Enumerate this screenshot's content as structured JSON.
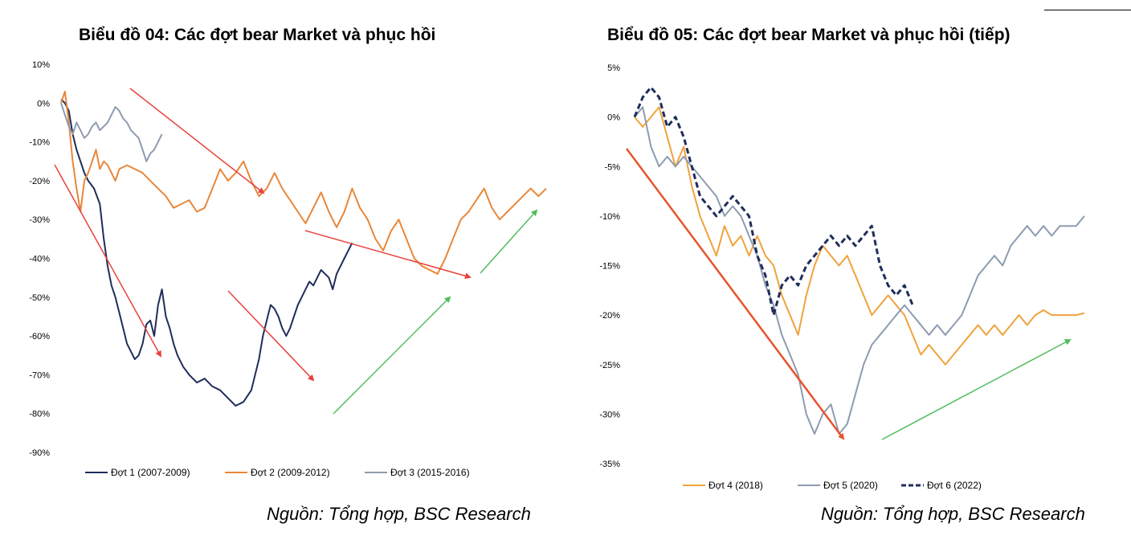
{
  "charts": {
    "left": {
      "title": "Biểu đồ 04: Các đợt bear Market và phục hồi",
      "source": "Nguồn: Tổng hợp, BSC Research"
    },
    "right": {
      "title": "Biểu đồ 05: Các đợt bear Market và phục hồi (tiếp)",
      "source": "Nguồn: Tổng hợp, BSC Research"
    }
  },
  "chart_data": [
    {
      "type": "line",
      "title": "Biểu đồ 04: Các đợt bear Market và phục hồi",
      "xlabel": "",
      "ylabel": "",
      "ylim": [
        -90,
        10
      ],
      "yticks": [
        "10%",
        "0%",
        "-10%",
        "-20%",
        "-30%",
        "-40%",
        "-50%",
        "-60%",
        "-70%",
        "-80%",
        "-90%"
      ],
      "legend_position": "bottom",
      "series": [
        {
          "name": "Đợt 1 (2007-2009)",
          "color": "#1f2d5a",
          "dash": false,
          "x": [
            0,
            2,
            4,
            6,
            8,
            10,
            12,
            14,
            17,
            20,
            22,
            24,
            26,
            28,
            30,
            32,
            34,
            36,
            38,
            40,
            42,
            44,
            46,
            48,
            50,
            52,
            54,
            56,
            58,
            60,
            63,
            66,
            70,
            74,
            78,
            82,
            86,
            90,
            94,
            98,
            100,
            102,
            104,
            106,
            108,
            110,
            112,
            114,
            116,
            118,
            120,
            122,
            124,
            126,
            128,
            130,
            132,
            134,
            136,
            138,
            140,
            142,
            144,
            146,
            148,
            150
          ],
          "values": [
            1,
            0,
            -2,
            -8,
            -12,
            -15,
            -18,
            -20,
            -22,
            -26,
            -35,
            -42,
            -47,
            -50,
            -54,
            -58,
            -62,
            -64,
            -66,
            -65,
            -62,
            -57,
            -56,
            -60,
            -52,
            -48,
            -55,
            -58,
            -62,
            -65,
            -68,
            -70,
            -72,
            -71,
            -73,
            -74,
            -76,
            -78,
            -77,
            -74,
            -70,
            -66,
            -60,
            -56,
            -52,
            -53,
            -55,
            -58,
            -60,
            -58,
            -55,
            -52,
            -50,
            -48,
            -46,
            -47,
            -45,
            -43,
            -44,
            -45,
            -48,
            -44,
            -42,
            -40,
            -38,
            -36
          ]
        },
        {
          "name": "Đợt 2 (2009-2012)",
          "color": "#e8873a",
          "dash": false,
          "x": [
            0,
            2,
            4,
            6,
            8,
            10,
            12,
            14,
            16,
            18,
            20,
            22,
            24,
            26,
            28,
            30,
            34,
            38,
            42,
            46,
            50,
            54,
            58,
            62,
            66,
            70,
            74,
            78,
            82,
            86,
            90,
            94,
            98,
            102,
            106,
            110,
            114,
            118,
            122,
            126,
            130,
            134,
            138,
            142,
            146,
            150,
            154,
            158,
            162,
            166,
            170,
            174,
            178,
            182,
            186,
            190,
            194,
            198,
            202,
            206,
            210,
            214,
            218,
            222,
            226,
            230,
            234,
            238,
            242,
            246,
            250
          ],
          "values": [
            0,
            3,
            -5,
            -15,
            -22,
            -28,
            -20,
            -18,
            -15,
            -12,
            -17,
            -15,
            -16,
            -18,
            -20,
            -17,
            -16,
            -17,
            -18,
            -20,
            -22,
            -24,
            -27,
            -26,
            -25,
            -28,
            -27,
            -22,
            -17,
            -20,
            -18,
            -15,
            -20,
            -24,
            -22,
            -18,
            -22,
            -25,
            -28,
            -31,
            -27,
            -23,
            -28,
            -32,
            -28,
            -22,
            -27,
            -30,
            -35,
            -38,
            -33,
            -30,
            -35,
            -40,
            -42,
            -43,
            -44,
            -40,
            -35,
            -30,
            -28,
            -25,
            -22,
            -27,
            -30,
            -28,
            -26,
            -24,
            -22,
            -24,
            -22
          ]
        },
        {
          "name": "Đợt 3 (2015-2016)",
          "color": "#8e9bb0",
          "dash": false,
          "x": [
            0,
            2,
            4,
            6,
            8,
            10,
            12,
            14,
            16,
            18,
            20,
            22,
            24,
            26,
            28,
            30,
            32,
            34,
            36,
            38,
            40,
            42,
            44,
            46,
            48,
            50,
            52
          ],
          "values": [
            0,
            -3,
            -6,
            -8,
            -5,
            -7,
            -9,
            -8,
            -6,
            -5,
            -7,
            -6,
            -5,
            -3,
            -1,
            -2,
            -4,
            -5,
            -7,
            -8,
            -9,
            -12,
            -15,
            -13,
            -12,
            -10,
            -8
          ]
        }
      ]
    },
    {
      "type": "line",
      "title": "Biểu đồ 05: Các đợt bear Market và phục hồi (tiếp)",
      "xlabel": "",
      "ylabel": "",
      "ylim": [
        -35,
        5
      ],
      "yticks": [
        "5%",
        "0%",
        "-5%",
        "-10%",
        "-15%",
        "-20%",
        "-25%",
        "-30%",
        "-35%"
      ],
      "legend_position": "bottom",
      "series": [
        {
          "name": "Đợt 4 (2018)",
          "color": "#f0a23c",
          "dash": false,
          "x": [
            0,
            4,
            8,
            12,
            16,
            20,
            24,
            28,
            32,
            36,
            40,
            44,
            48,
            52,
            56,
            60,
            64,
            68,
            72,
            76,
            80,
            84,
            88,
            92,
            96,
            100,
            104,
            108,
            112,
            116,
            120,
            124,
            128,
            132,
            136,
            140,
            144,
            148,
            152,
            156,
            160,
            164,
            168,
            172,
            176,
            180,
            184,
            188,
            192,
            196,
            200,
            204,
            208,
            212,
            216,
            220
          ],
          "values": [
            0,
            -1,
            0,
            1,
            -2,
            -5,
            -3,
            -7,
            -10,
            -12,
            -14,
            -11,
            -13,
            -12,
            -14,
            -12,
            -14,
            -15,
            -18,
            -20,
            -22,
            -18,
            -15,
            -13,
            -14,
            -15,
            -14,
            -16,
            -18,
            -20,
            -19,
            -18,
            -19,
            -20,
            -22,
            -24,
            -23,
            -24,
            -25,
            -24,
            -23,
            -22,
            -21,
            -22,
            -21,
            -22,
            -21,
            -20,
            -21,
            -20,
            -19.5,
            -20,
            -20,
            -20,
            -20,
            -19.8
          ]
        },
        {
          "name": "Đợt 5 (2020)",
          "color": "#8e9bb0",
          "dash": false,
          "x": [
            0,
            4,
            8,
            12,
            16,
            20,
            24,
            28,
            32,
            36,
            40,
            44,
            48,
            52,
            56,
            60,
            64,
            68,
            72,
            76,
            80,
            84,
            88,
            92,
            96,
            100,
            104,
            108,
            112,
            116,
            120,
            124,
            128,
            132,
            136,
            140,
            144,
            148,
            152,
            156,
            160,
            164,
            168,
            172,
            176,
            180,
            184,
            188,
            192,
            196,
            200,
            204,
            208,
            212,
            216,
            220
          ],
          "values": [
            0,
            1,
            -3,
            -5,
            -4,
            -5,
            -4,
            -5,
            -6,
            -7,
            -8,
            -10,
            -9,
            -10,
            -12,
            -14,
            -17,
            -19,
            -22,
            -24,
            -26,
            -30,
            -32,
            -30,
            -29,
            -32,
            -31,
            -28,
            -25,
            -23,
            -22,
            -21,
            -20,
            -19,
            -20,
            -21,
            -22,
            -21,
            -22,
            -21,
            -20,
            -18,
            -16,
            -15,
            -14,
            -15,
            -13,
            -12,
            -11,
            -12,
            -11,
            -12,
            -11,
            -11,
            -11,
            -10
          ]
        },
        {
          "name": "Đợt 6 (2022)",
          "color": "#1f2d5a",
          "dash": true,
          "x": [
            0,
            4,
            8,
            12,
            16,
            20,
            24,
            28,
            32,
            36,
            40,
            44,
            48,
            52,
            56,
            60,
            64,
            68,
            72,
            76,
            80,
            84,
            88,
            92,
            96,
            100,
            104,
            108,
            112,
            116,
            120,
            124,
            128,
            132,
            136
          ],
          "values": [
            0,
            2,
            3,
            2,
            -1,
            0,
            -2,
            -5,
            -8,
            -9,
            -10,
            -9,
            -8,
            -9,
            -10,
            -14,
            -16,
            -20,
            -17,
            -16,
            -17,
            -15,
            -14,
            -13,
            -12,
            -13,
            -12,
            -13,
            -12,
            -11,
            -15,
            -17,
            -18,
            -17,
            -19
          ]
        }
      ]
    }
  ]
}
